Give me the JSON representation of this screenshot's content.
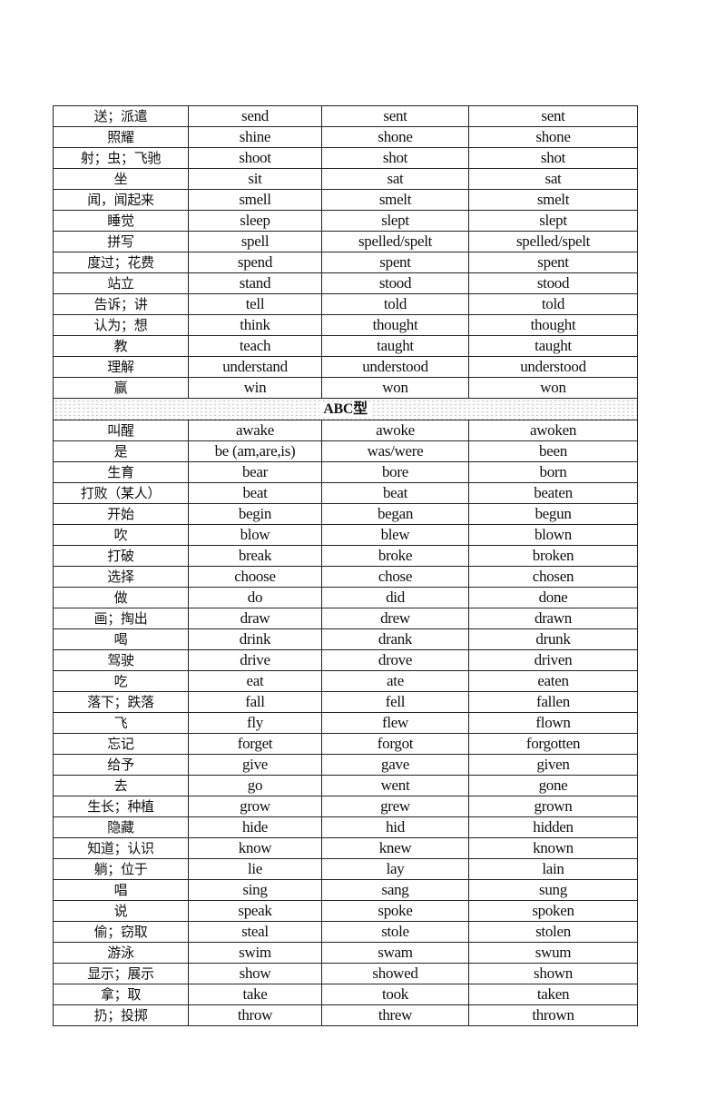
{
  "section_title": "ABC型",
  "rows_before": [
    [
      "送；派遣",
      "send",
      "sent",
      "sent"
    ],
    [
      "照耀",
      "shine",
      "shone",
      "shone"
    ],
    [
      "射；虫；飞驰",
      "shoot",
      "shot",
      "shot"
    ],
    [
      "坐",
      "sit",
      "sat",
      "sat"
    ],
    [
      "闻，闻起来",
      "smell",
      "smelt",
      "smelt"
    ],
    [
      "睡觉",
      "sleep",
      "slept",
      "slept"
    ],
    [
      "拼写",
      "spell",
      "spelled/spelt",
      "spelled/spelt"
    ],
    [
      "度过；花费",
      "spend",
      "spent",
      "spent"
    ],
    [
      "站立",
      "stand",
      "stood",
      "stood"
    ],
    [
      "告诉；讲",
      "tell",
      "told",
      "told"
    ],
    [
      "认为；想",
      "think",
      "thought",
      "thought"
    ],
    [
      "教",
      "teach",
      "taught",
      "taught"
    ],
    [
      "理解",
      "understand",
      "understood",
      "understood"
    ],
    [
      "赢",
      "win",
      "won",
      "won"
    ]
  ],
  "rows_after": [
    [
      "叫醒",
      "awake",
      "awoke",
      "awoken"
    ],
    [
      "是",
      "be (am,are,is)",
      "was/were",
      "been"
    ],
    [
      "生育",
      "bear",
      "bore",
      "born"
    ],
    [
      "打败（某人）",
      "beat",
      "beat",
      "beaten"
    ],
    [
      "开始",
      "begin",
      "began",
      "begun"
    ],
    [
      "吹",
      "blow",
      "blew",
      "blown"
    ],
    [
      "打破",
      "break",
      "broke",
      "broken"
    ],
    [
      "选择",
      "choose",
      "chose",
      "chosen"
    ],
    [
      "做",
      "do",
      "did",
      "done"
    ],
    [
      "画；掏出",
      "draw",
      "drew",
      "drawn"
    ],
    [
      "喝",
      "drink",
      "drank",
      "drunk"
    ],
    [
      "驾驶",
      "drive",
      "drove",
      "driven"
    ],
    [
      "吃",
      "eat",
      "ate",
      "eaten"
    ],
    [
      "落下；跌落",
      "fall",
      "fell",
      "fallen"
    ],
    [
      "飞",
      "fly",
      "flew",
      "flown"
    ],
    [
      "忘记",
      "forget",
      "forgot",
      "forgotten"
    ],
    [
      "给予",
      "give",
      "gave",
      "given"
    ],
    [
      "去",
      "go",
      "went",
      "gone"
    ],
    [
      "生长；种植",
      "grow",
      "grew",
      "grown"
    ],
    [
      "隐藏",
      "hide",
      "hid",
      "hidden"
    ],
    [
      "知道；认识",
      "know",
      "knew",
      "known"
    ],
    [
      "躺；位于",
      "lie",
      "lay",
      "lain"
    ],
    [
      "唱",
      "sing",
      "sang",
      "sung"
    ],
    [
      "说",
      "speak",
      "spoke",
      "spoken"
    ],
    [
      "偷；窃取",
      "steal",
      "stole",
      "stolen"
    ],
    [
      "游泳",
      "swim",
      "swam",
      "swum"
    ],
    [
      "显示；展示",
      "show",
      "showed",
      "shown"
    ],
    [
      "拿；取",
      "take",
      "took",
      "taken"
    ],
    [
      "扔；投掷",
      "throw",
      "threw",
      "thrown"
    ]
  ]
}
